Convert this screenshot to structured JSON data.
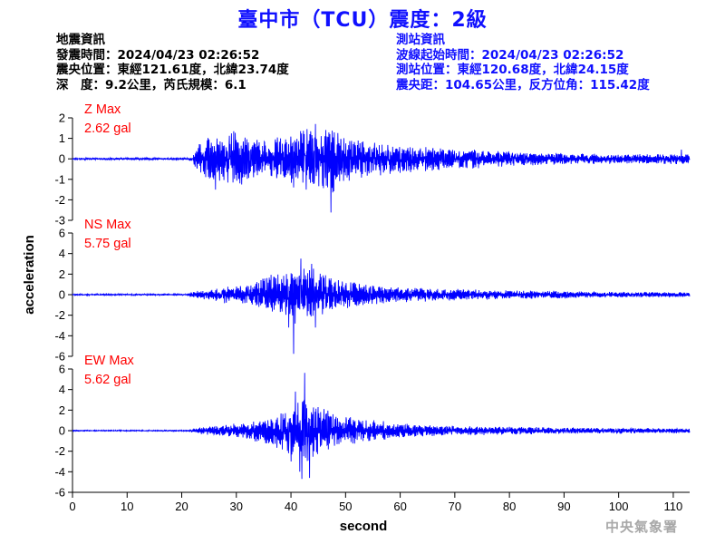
{
  "title": "臺中市（TCU）震度：2級",
  "quake_info": {
    "heading": "地震資訊",
    "origin_time": "發震時間：2024/04/23 02:26:52",
    "epicenter": "震央位置：東經121.61度，北緯23.74度",
    "depth_magnitude": "深　度：9.2公里，芮氏規模：6.1"
  },
  "station_info": {
    "heading": "測站資訊",
    "wave_start": "波線起始時間：2024/04/23 02:26:52",
    "location": "測站位置：東經120.68度，北緯24.15度",
    "distance": "震央距：104.65公里，反方位角：115.42度"
  },
  "agency": "中央氣象署",
  "colors": {
    "title": "#1010ff",
    "trace": "#0000ff",
    "max_label": "#ff0000",
    "axis": "#000000"
  },
  "chart_data": {
    "type": "line",
    "xlabel": "second",
    "ylabel": "acceleration",
    "xlim": [
      0,
      113
    ],
    "xticks": [
      0,
      10,
      20,
      30,
      40,
      50,
      60,
      70,
      80,
      90,
      100,
      110
    ],
    "grid": false,
    "panels": [
      {
        "name": "Z Max",
        "max_value": "2.62 gal",
        "ylim": [
          -3,
          2
        ],
        "yticks": [
          2,
          1,
          0,
          -1,
          -2,
          -3
        ],
        "envelope": [
          [
            0,
            0.05
          ],
          [
            21,
            0.05
          ],
          [
            22,
            0.2
          ],
          [
            23,
            0.8
          ],
          [
            25,
            1.2
          ],
          [
            27,
            1.3
          ],
          [
            30,
            1.5
          ],
          [
            33,
            1.2
          ],
          [
            35,
            1.0
          ],
          [
            38,
            1.2
          ],
          [
            40,
            1.4
          ],
          [
            43,
            1.6
          ],
          [
            46,
            1.6
          ],
          [
            48,
            1.8
          ],
          [
            50,
            1.2
          ],
          [
            55,
            0.9
          ],
          [
            60,
            0.8
          ],
          [
            70,
            0.55
          ],
          [
            80,
            0.4
          ],
          [
            90,
            0.3
          ],
          [
            100,
            0.25
          ],
          [
            110,
            0.28
          ],
          [
            113,
            0.25
          ]
        ],
        "peaks": [
          [
            47.3,
            -2.62
          ],
          [
            44.5,
            1.7
          ],
          [
            29.5,
            1.35
          ],
          [
            26.2,
            -1.5
          ],
          [
            40.5,
            -1.4
          ],
          [
            42.8,
            -1.5
          ],
          [
            111.5,
            0.45
          ]
        ]
      },
      {
        "name": "NS Max",
        "max_value": "5.75 gal",
        "ylim": [
          -6,
          6
        ],
        "yticks": [
          6,
          4,
          2,
          0,
          -2,
          -4,
          -6
        ],
        "envelope": [
          [
            0,
            0.08
          ],
          [
            21,
            0.08
          ],
          [
            22,
            0.3
          ],
          [
            24,
            0.5
          ],
          [
            28,
            0.9
          ],
          [
            32,
            1.0
          ],
          [
            35,
            1.8
          ],
          [
            38,
            2.5
          ],
          [
            40,
            3.0
          ],
          [
            42,
            3.2
          ],
          [
            44,
            2.8
          ],
          [
            46,
            2.2
          ],
          [
            48,
            1.6
          ],
          [
            52,
            1.3
          ],
          [
            56,
            1.0
          ],
          [
            60,
            0.8
          ],
          [
            70,
            0.6
          ],
          [
            80,
            0.45
          ],
          [
            90,
            0.4
          ],
          [
            100,
            0.3
          ],
          [
            113,
            0.25
          ]
        ],
        "peaks": [
          [
            40.5,
            -5.75
          ],
          [
            41.8,
            3.5
          ],
          [
            39.6,
            -3.2
          ],
          [
            43.8,
            3.0
          ],
          [
            44.5,
            -3.2
          ]
        ]
      },
      {
        "name": "EW Max",
        "max_value": "5.62 gal",
        "ylim": [
          -6,
          6
        ],
        "yticks": [
          6,
          4,
          2,
          0,
          -2,
          -4,
          -6
        ],
        "envelope": [
          [
            0,
            0.06
          ],
          [
            21,
            0.06
          ],
          [
            22,
            0.2
          ],
          [
            24,
            0.4
          ],
          [
            28,
            0.7
          ],
          [
            32,
            0.9
          ],
          [
            36,
            1.5
          ],
          [
            39,
            2.2
          ],
          [
            41,
            3.0
          ],
          [
            43,
            3.5
          ],
          [
            45,
            2.8
          ],
          [
            47,
            2.0
          ],
          [
            50,
            1.5
          ],
          [
            54,
            1.2
          ],
          [
            58,
            0.9
          ],
          [
            65,
            0.6
          ],
          [
            75,
            0.45
          ],
          [
            90,
            0.35
          ],
          [
            100,
            0.3
          ],
          [
            113,
            0.25
          ]
        ],
        "peaks": [
          [
            42.5,
            5.62
          ],
          [
            42.0,
            -4.7
          ],
          [
            40.8,
            3.8
          ],
          [
            41.6,
            -4.0
          ],
          [
            43.4,
            -4.6
          ],
          [
            40.0,
            -3.0
          ]
        ]
      }
    ]
  }
}
